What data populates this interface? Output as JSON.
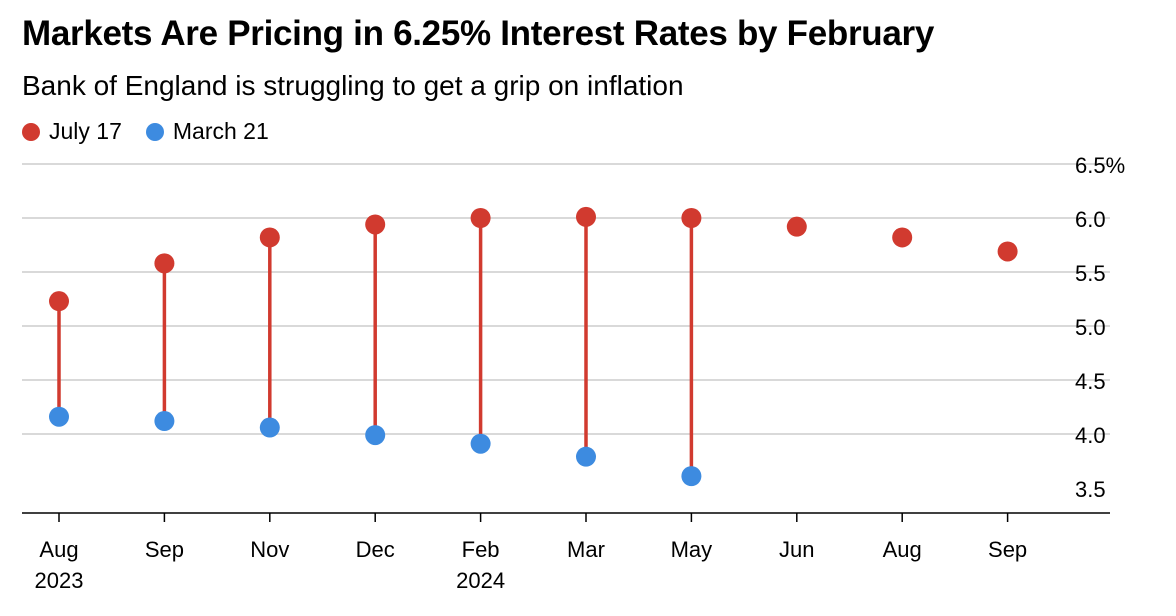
{
  "title": "Markets Are Pricing in 6.25% Interest Rates by February",
  "subtitle": "Bank of England is struggling to get a grip on inflation",
  "colors": {
    "july17": "#d13a2f",
    "march21": "#3d8be0",
    "connector": "#d13a2f",
    "grid": "#d9d9d9",
    "axis": "#000000"
  },
  "chart_data": {
    "type": "dumbbell",
    "title": "Markets Are Pricing in 6.25% Interest Rates by February",
    "subtitle": "Bank of England is struggling to get a grip on inflation",
    "categories": [
      "Aug 2023",
      "Sep",
      "Nov",
      "Dec",
      "Feb 2024",
      "Mar",
      "May",
      "Jun",
      "Aug",
      "Sep"
    ],
    "x_tick_labels": [
      [
        "Aug",
        "2023"
      ],
      [
        "Sep",
        ""
      ],
      [
        "Nov",
        ""
      ],
      [
        "Dec",
        ""
      ],
      [
        "Feb",
        "2024"
      ],
      [
        "Mar",
        ""
      ],
      [
        "May",
        ""
      ],
      [
        "Jun",
        ""
      ],
      [
        "Aug",
        ""
      ],
      [
        "Sep",
        ""
      ]
    ],
    "series": [
      {
        "name": "July 17",
        "color": "#d13a2f",
        "values": [
          5.23,
          5.58,
          5.82,
          5.94,
          6.0,
          6.01,
          6.0,
          5.92,
          5.82,
          5.69
        ]
      },
      {
        "name": "March 21",
        "color": "#3d8be0",
        "values": [
          4.16,
          4.12,
          4.06,
          3.99,
          3.91,
          3.79,
          3.61,
          null,
          null,
          null
        ]
      }
    ],
    "y_ticks": [
      "3.5",
      "4.0",
      "4.5",
      "5.0",
      "5.5",
      "6.0",
      "6.5%"
    ],
    "y_tick_values": [
      3.5,
      4.0,
      4.5,
      5.0,
      5.5,
      6.0,
      6.5
    ],
    "ylim": [
      3.25,
      6.5
    ],
    "grid": true,
    "legend_position": "top-left",
    "y_axis_side": "right"
  }
}
